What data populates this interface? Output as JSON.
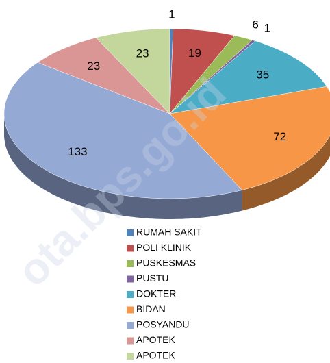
{
  "chart_data": {
    "type": "pie3d",
    "categories": [
      "RUMAH SAKIT",
      "POLI KLINIK",
      "PUSKESMAS",
      "PUSTU",
      "DOKTER",
      "BIDAN",
      "POSYANDU",
      "APOTEK",
      "APOTEK"
    ],
    "values": [
      1,
      19,
      6,
      1,
      35,
      72,
      133,
      23,
      23
    ],
    "colors": [
      "#4f81bd",
      "#c0504d",
      "#9bbb59",
      "#8064a2",
      "#4bacc6",
      "#f79646",
      "#95a9d5",
      "#d99694",
      "#c3d69b"
    ],
    "legend": "bottom",
    "watermark": "ota.bps.go.id"
  }
}
